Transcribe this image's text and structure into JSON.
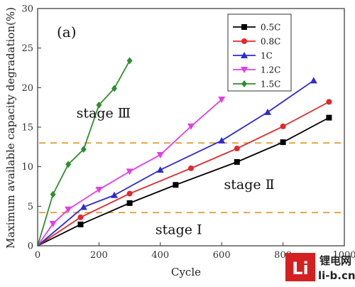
{
  "chart_data": {
    "type": "line",
    "panel_label": "(a)",
    "title": "",
    "xlabel": "Cycle",
    "ylabel": "Maximum available capacity degradation(%)",
    "xlim": [
      0,
      1000
    ],
    "ylim": [
      0,
      30
    ],
    "xticks": [
      0,
      200,
      400,
      600,
      800,
      1000
    ],
    "yticks": [
      0,
      5,
      10,
      15,
      20,
      25,
      30
    ],
    "grid": false,
    "legend_position": "top-right",
    "series": [
      {
        "name": "0.5C",
        "color": "#000000",
        "marker": "square",
        "x": [
          0,
          140,
          300,
          450,
          650,
          800,
          950
        ],
        "y": [
          0,
          2.7,
          5.4,
          7.7,
          10.6,
          13.1,
          16.2
        ]
      },
      {
        "name": "0.8C",
        "color": "#e0292b",
        "marker": "circle",
        "x": [
          0,
          140,
          300,
          500,
          650,
          800,
          950
        ],
        "y": [
          0,
          3.6,
          6.6,
          9.8,
          12.3,
          15.1,
          18.2
        ]
      },
      {
        "name": "1C",
        "color": "#2e2bd1",
        "marker": "triangle-up",
        "x": [
          0,
          150,
          250,
          400,
          600,
          750,
          900
        ],
        "y": [
          0,
          4.9,
          6.4,
          9.6,
          13.3,
          16.9,
          20.9
        ]
      },
      {
        "name": "1.2C",
        "color": "#e23ee6",
        "marker": "triangle-down",
        "x": [
          0,
          50,
          100,
          200,
          300,
          400,
          500,
          600
        ],
        "y": [
          0,
          2.8,
          4.6,
          7.1,
          9.4,
          11.5,
          15.1,
          18.5
        ]
      },
      {
        "name": "1.5C",
        "color": "#2f8f2f",
        "marker": "diamond",
        "x": [
          0,
          50,
          100,
          150,
          200,
          250,
          300
        ],
        "y": [
          0,
          6.5,
          10.3,
          12.2,
          17.8,
          19.9,
          23.4
        ]
      }
    ],
    "reference_lines": [
      {
        "y": 13.0,
        "color": "#e39a2e",
        "style": "dashed"
      },
      {
        "y": 4.2,
        "color": "#e39a2e",
        "style": "dashed"
      }
    ],
    "annotations": [
      {
        "text": "stage Ⅲ",
        "x": 215,
        "y": 16.2
      },
      {
        "text": "stage Ⅱ",
        "x": 690,
        "y": 7.2
      },
      {
        "text": "stage Ⅰ",
        "x": 460,
        "y": 1.5
      }
    ]
  },
  "watermark": {
    "logo_glyph": "Li",
    "chinese": "锂电网",
    "url": "li-b.cn",
    "colors": {
      "logo_bg": "#d42020",
      "logo_fg": "#ffffff"
    }
  }
}
